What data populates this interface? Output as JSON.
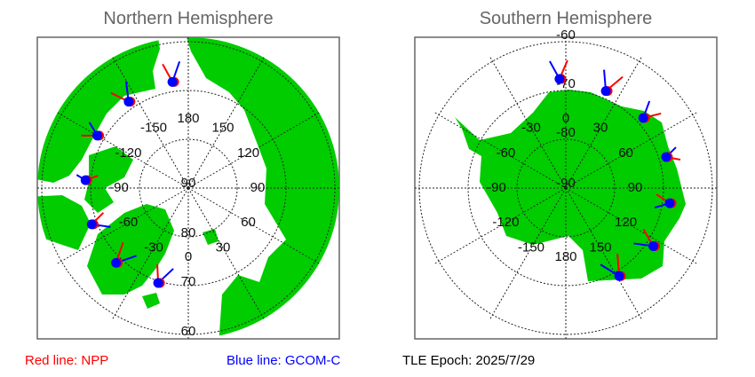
{
  "north": {
    "title": "Northern Hemisphere",
    "lon_labels": [
      {
        "lon": 180,
        "text": "180"
      },
      {
        "lon": 150,
        "text": "150"
      },
      {
        "lon": 120,
        "text": "120"
      },
      {
        "lon": 90,
        "text": "90"
      },
      {
        "lon": 60,
        "text": "60"
      },
      {
        "lon": 30,
        "text": "30"
      },
      {
        "lon": 0,
        "text": "0"
      },
      {
        "lon": -30,
        "text": "-30"
      },
      {
        "lon": -60,
        "text": "-60"
      },
      {
        "lon": -90,
        "text": "-90"
      },
      {
        "lon": -120,
        "text": "-120"
      },
      {
        "lon": -150,
        "text": "-150"
      }
    ],
    "lat_labels": [
      "90",
      "80",
      "70",
      "60"
    ],
    "passes": [
      {
        "lat": 68.0,
        "lon": -171.5
      },
      {
        "lat": 68.5,
        "lon": -145.4
      },
      {
        "lat": 68.5,
        "lon": -120
      },
      {
        "lat": 68.9,
        "lon": -94.4
      },
      {
        "lat": 68.9,
        "lon": -69.4
      },
      {
        "lat": 68.7,
        "lon": -44
      },
      {
        "lat": 69.6,
        "lon": -17.6
      }
    ]
  },
  "south": {
    "title": "Southern Hemisphere",
    "lon_labels": [
      {
        "lon": 0,
        "text": "0"
      },
      {
        "lon": 30,
        "text": "30"
      },
      {
        "lon": 60,
        "text": "60"
      },
      {
        "lon": 90,
        "text": "90"
      },
      {
        "lon": 120,
        "text": "120"
      },
      {
        "lon": 150,
        "text": "150"
      },
      {
        "lon": 180,
        "text": "180"
      },
      {
        "lon": -150,
        "text": "-150"
      },
      {
        "lon": -120,
        "text": "-120"
      },
      {
        "lon": -90,
        "text": "-90"
      },
      {
        "lon": -60,
        "text": "-60"
      },
      {
        "lon": -30,
        "text": "-30"
      }
    ],
    "lat_labels": [
      "-90",
      "-80",
      "-70",
      "-60"
    ],
    "passes": [
      {
        "lat": -67.6,
        "lon": -3.3
      },
      {
        "lat": -68.5,
        "lon": 22.4
      },
      {
        "lat": -68.6,
        "lon": 47.8
      },
      {
        "lat": -68.5,
        "lon": 72.8
      },
      {
        "lat": -68.5,
        "lon": 98.3
      },
      {
        "lat": -68.5,
        "lon": 123.6
      },
      {
        "lat": -68.9,
        "lon": 148.8
      }
    ]
  },
  "legend": {
    "red": "Red line: NPP",
    "blue": "Blue line: GCOM-C",
    "epoch": "TLE Epoch: 2025/7/29"
  },
  "colors": {
    "land": "#00cc00",
    "red_line": "#ff0000",
    "blue_line": "#0000ff",
    "frame": "#666666",
    "title": "#666666"
  }
}
